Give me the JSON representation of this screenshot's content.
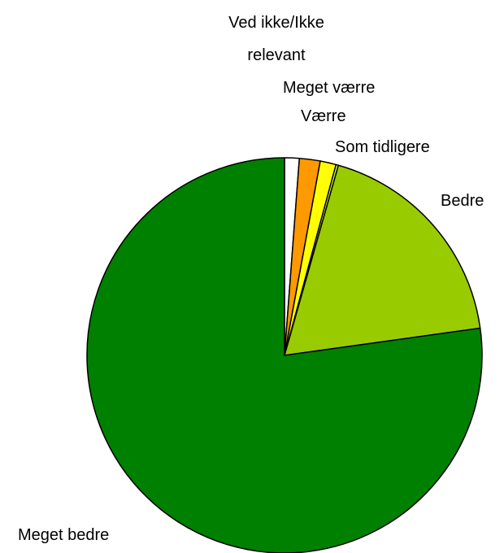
{
  "chart_data": {
    "type": "pie",
    "categories": [
      "Ved ikke/Ikke relevant",
      "Meget værre",
      "Værre",
      "Som tidligere",
      "Bedre",
      "Meget bedre"
    ],
    "values": [
      1.2,
      1.7,
      1.3,
      0.2,
      18.4,
      77.2
    ],
    "colors": [
      "#ffffff",
      "#ff9900",
      "#ffff00",
      "#ccff66",
      "#99cc00",
      "#008000"
    ]
  }
}
